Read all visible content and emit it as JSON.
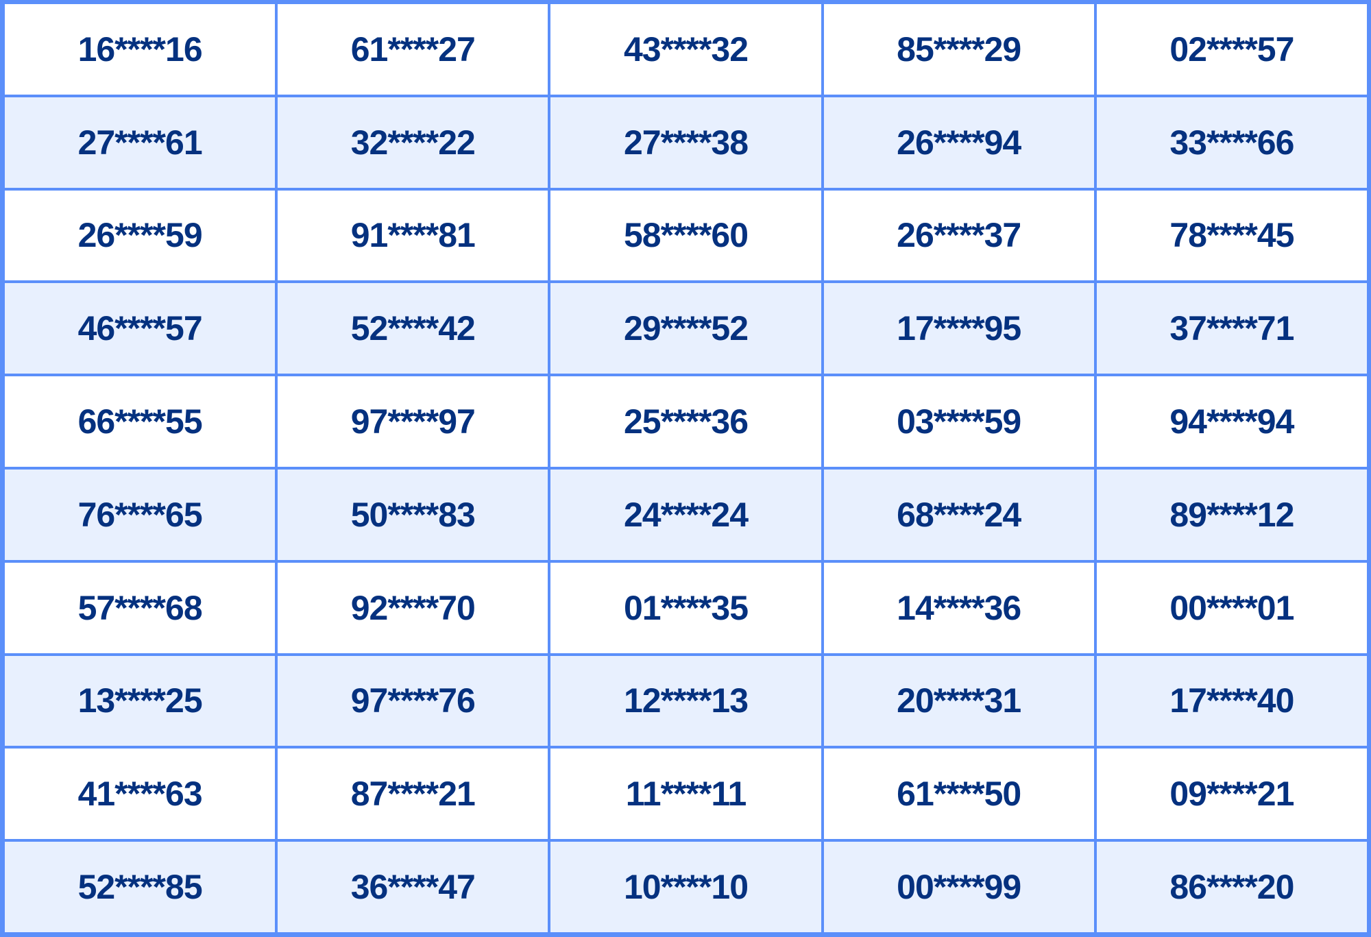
{
  "colors": {
    "border": "#5b8ffa",
    "row_even_bg": "#ffffff",
    "row_alt_bg": "#e8f0fe",
    "text": "#05317f"
  },
  "rows": [
    [
      "16****16",
      "61****27",
      "43****32",
      "85****29",
      "02****57"
    ],
    [
      "27****61",
      "32****22",
      "27****38",
      "26****94",
      "33****66"
    ],
    [
      "26****59",
      "91****81",
      "58****60",
      "26****37",
      "78****45"
    ],
    [
      "46****57",
      "52****42",
      "29****52",
      "17****95",
      "37****71"
    ],
    [
      "66****55",
      "97****97",
      "25****36",
      "03****59",
      "94****94"
    ],
    [
      "76****65",
      "50****83",
      "24****24",
      "68****24",
      "89****12"
    ],
    [
      "57****68",
      "92****70",
      "01****35",
      "14****36",
      "00****01"
    ],
    [
      "13****25",
      "97****76",
      "12****13",
      "20****31",
      "17****40"
    ],
    [
      "41****63",
      "87****21",
      "11****11",
      "61****50",
      "09****21"
    ],
    [
      "52****85",
      "36****47",
      "10****10",
      "00****99",
      "86****20"
    ]
  ]
}
